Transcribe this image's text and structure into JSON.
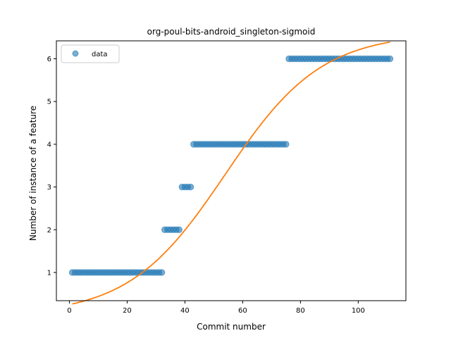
{
  "chart_data": {
    "type": "scatter",
    "title": "org-poul-bits-android_singleton-sigmoid",
    "xlabel": "Commit number",
    "ylabel": "Number of instance of a feature",
    "xlim": [
      -4.5,
      116.5
    ],
    "ylim": [
      0.34,
      6.42
    ],
    "x_ticks": [
      0,
      20,
      40,
      60,
      80,
      100
    ],
    "y_ticks": [
      1,
      2,
      3,
      4,
      5,
      6
    ],
    "legend": {
      "placement": "top-left",
      "entries": [
        "data"
      ]
    },
    "grid": false,
    "colors": {
      "points": "#1f77b4",
      "fit": "#ff7f0e"
    },
    "series": [
      {
        "name": "data",
        "style": "points",
        "segments": [
          {
            "x_start": 1,
            "x_end": 32,
            "y": 1
          },
          {
            "x_start": 33,
            "x_end": 38,
            "y": 2
          },
          {
            "x_start": 39,
            "x_end": 42,
            "y": 3
          },
          {
            "x_start": 43,
            "x_end": 75,
            "y": 4
          },
          {
            "x_start": 76,
            "x_end": 111,
            "y": 6
          }
        ]
      },
      {
        "style": "line",
        "model": "sigmoid",
        "x_range": [
          1,
          111
        ],
        "params": {
          "L": 6.6,
          "k": 0.06,
          "x0": 54.0,
          "b": 0
        }
      }
    ]
  }
}
